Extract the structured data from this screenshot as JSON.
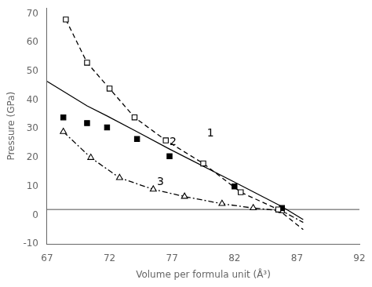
{
  "chart_data": {
    "type": "line",
    "xlabel": "Volume per formula unit (Å³)",
    "ylabel": "Pressure (GPa)",
    "xlim": [
      67,
      92
    ],
    "ylim": [
      -10,
      72
    ],
    "xticks": [
      67,
      72,
      77,
      82,
      87,
      92
    ],
    "yticks": [
      -10,
      0,
      10,
      20,
      30,
      40,
      50,
      60,
      70
    ],
    "grid": false,
    "series": [
      {
        "x": [
          68.5,
          70.2,
          72.0,
          74.0,
          76.5,
          79.5,
          82.5,
          85.5,
          87.5
        ],
        "values": [
          68.0,
          53.0,
          44.0,
          34.0,
          26.0,
          18.0,
          8.0,
          2.0,
          -5.0
        ],
        "color": "black",
        "line_style": "dashed",
        "marker": "none"
      },
      {
        "x": [
          68.5,
          70.2,
          72.0,
          74.0,
          76.5,
          79.5,
          82.5,
          85.5
        ],
        "values": [
          68.0,
          53.0,
          44.0,
          34.0,
          26.0,
          18.0,
          8.0,
          2.0
        ],
        "color": "black",
        "line_style": "none",
        "marker": "open_square"
      },
      {
        "x": [
          67.0,
          70.2,
          71.8,
          74.2,
          76.8,
          82.0,
          85.8,
          87.5
        ],
        "values": [
          46.5,
          38.0,
          34.5,
          29.0,
          23.0,
          11.5,
          3.0,
          -1.5
        ],
        "color": "black",
        "line_style": "solid",
        "marker": "none"
      },
      {
        "x": [
          68.3,
          70.2,
          71.8,
          74.2,
          76.8,
          82.0,
          85.8
        ],
        "values": [
          34.0,
          32.0,
          30.5,
          26.5,
          20.5,
          10.0,
          2.5
        ],
        "color": "black",
        "line_style": "none",
        "marker": "square"
      },
      {
        "x": [
          68.3,
          70.5,
          72.8,
          75.5,
          78.0,
          81.0,
          83.5,
          85.8,
          87.5
        ],
        "values": [
          29.0,
          20.0,
          13.0,
          9.0,
          6.5,
          4.0,
          2.5,
          1.5,
          -2.5
        ],
        "color": "black",
        "line_style": "dashdot",
        "marker": "none"
      },
      {
        "x": [
          68.3,
          70.5,
          72.8,
          75.5,
          78.0,
          81.0,
          83.5,
          85.8
        ],
        "values": [
          29.0,
          20.0,
          13.0,
          9.0,
          6.5,
          4.0,
          2.5,
          1.5
        ],
        "color": "black",
        "line_style": "none",
        "marker": "open_triangle"
      }
    ],
    "hline": 2.0,
    "annotations": [
      {
        "text": "1",
        "x": 79.8,
        "y": 27.5
      },
      {
        "text": "2",
        "x": 76.8,
        "y": 24.5
      },
      {
        "text": "3",
        "x": 75.8,
        "y": 10.5
      }
    ]
  }
}
